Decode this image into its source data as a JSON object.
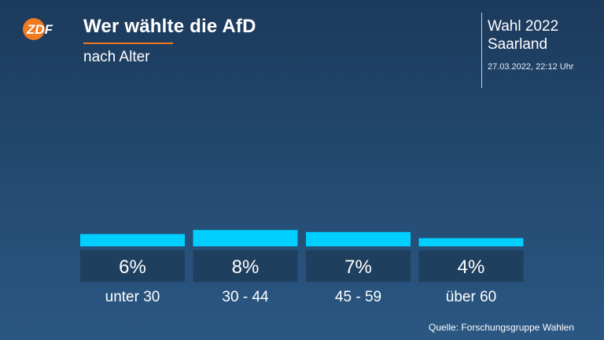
{
  "header": {
    "logo_text": "ZDF",
    "title": "Wer wählte die AfD",
    "subtitle": "nach Alter",
    "election_line1": "Wahl 2022",
    "election_line2": "Saarland",
    "timestamp": "27.03.2022, 22:12 Uhr"
  },
  "colors": {
    "bar": "#00cfff",
    "label_box": "#1f3f5e",
    "accent": "#f07a1f"
  },
  "chart_data": {
    "type": "bar",
    "title": "Wer wählte die AfD",
    "subtitle": "nach Alter",
    "categories": [
      "unter 30",
      "30 - 44",
      "45 - 59",
      "über 60"
    ],
    "values": [
      6,
      8,
      7,
      4
    ],
    "value_labels": [
      "6%",
      "8%",
      "7%",
      "4%"
    ],
    "ylim": [
      0,
      100
    ],
    "grid": false,
    "legend": "none"
  },
  "footer": {
    "source": "Quelle: Forschungsgruppe Wahlen"
  }
}
